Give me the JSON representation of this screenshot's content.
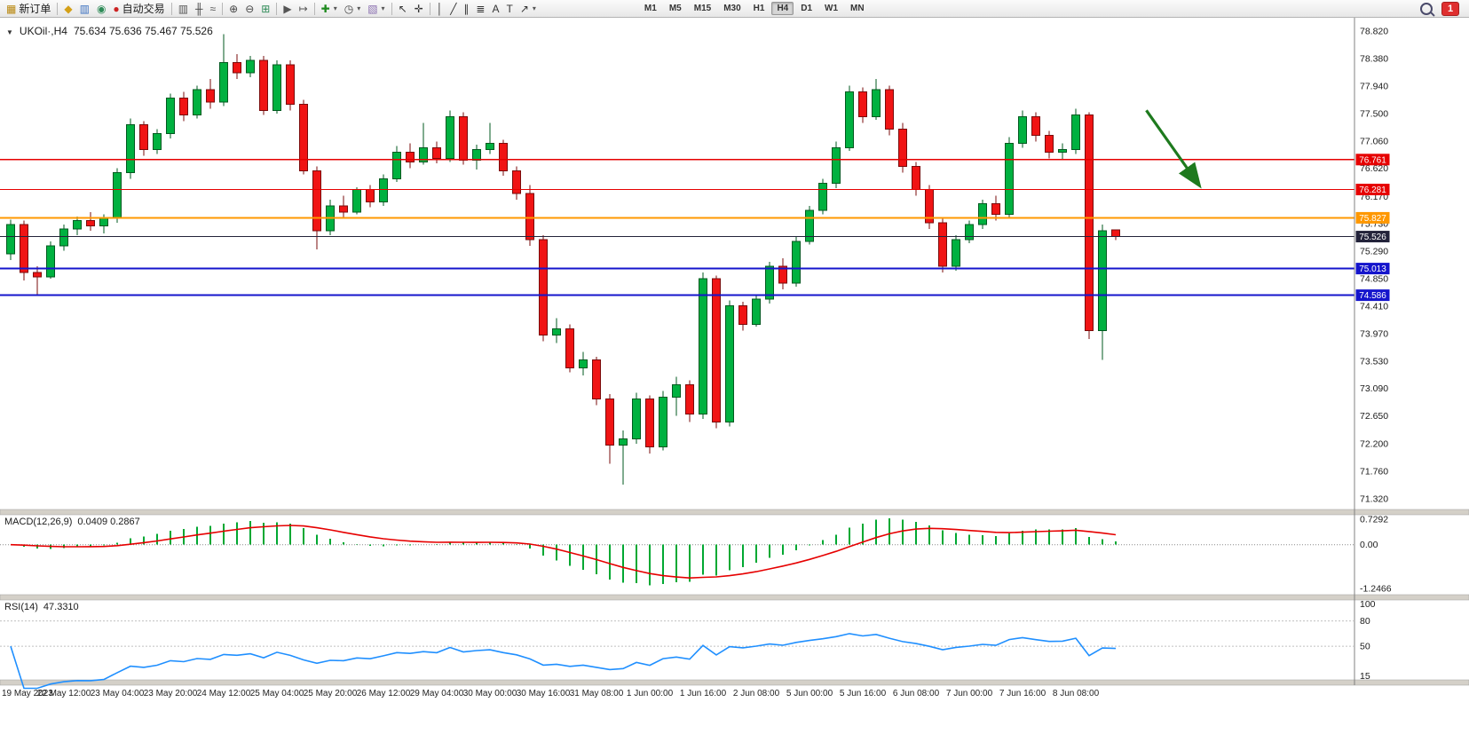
{
  "toolbar": {
    "notification_count": "1",
    "timeframes": [
      "M1",
      "M5",
      "M15",
      "M30",
      "H1",
      "H4",
      "D1",
      "W1",
      "MN"
    ],
    "active_timeframe": "H4",
    "items": [
      {
        "name": "new-order-button",
        "icon": "new-order",
        "label": "新订单"
      },
      {
        "sep": true
      },
      {
        "name": "market-watch-button",
        "icon": "market-watch"
      },
      {
        "name": "data-window-button",
        "icon": "data-window"
      },
      {
        "name": "navigator-button",
        "icon": "navigator"
      },
      {
        "name": "autotrading-button",
        "icon": "autotrading",
        "label": "自动交易"
      },
      {
        "sep": true
      },
      {
        "name": "bar-chart-button",
        "icon": "bar-chart"
      },
      {
        "name": "candlestick-chart-button",
        "icon": "candlestick"
      },
      {
        "name": "line-chart-button",
        "icon": "line-chart"
      },
      {
        "sep": true
      },
      {
        "name": "zoom-in-button",
        "icon": "zoom-in"
      },
      {
        "name": "zoom-out-button",
        "icon": "zoom-out"
      },
      {
        "name": "tile-windows-button",
        "icon": "tile-windows"
      },
      {
        "sep": true
      },
      {
        "name": "auto-scroll-button",
        "icon": "auto-scroll"
      },
      {
        "name": "chart-shift-button",
        "icon": "chart-shift"
      },
      {
        "sep": true
      },
      {
        "name": "indicators-button",
        "icon": "indicators",
        "dropdown": true
      },
      {
        "name": "periods-button",
        "icon": "clock",
        "dropdown": true
      },
      {
        "name": "templates-button",
        "icon": "template",
        "dropdown": true
      },
      {
        "sep": true
      },
      {
        "name": "cursor-button",
        "icon": "cursor"
      },
      {
        "name": "crosshair-button",
        "icon": "crosshair"
      },
      {
        "sep": true
      },
      {
        "name": "vertical-line-button",
        "icon": "vline"
      },
      {
        "name": "trendline-button",
        "icon": "trendline"
      },
      {
        "name": "equidistant-channel-button",
        "icon": "channel"
      },
      {
        "name": "fibonacci-button",
        "icon": "fibonacci"
      },
      {
        "name": "text-button",
        "icon": "text"
      },
      {
        "name": "text-label-button",
        "icon": "text-label"
      },
      {
        "name": "arrows-button",
        "icon": "arrows",
        "dropdown": true
      }
    ]
  },
  "chart_data": {
    "type": "candlestick",
    "symbol": "UKOil",
    "timeframe": "H4",
    "title_symbol": "UKOil·,H4",
    "title_ohlc": "75.634 75.636 75.467 75.526",
    "price_axis_labels": [
      "78.820",
      "78.380",
      "77.940",
      "77.500",
      "77.060",
      "76.620",
      "76.170",
      "75.730",
      "75.290",
      "74.850",
      "74.410",
      "73.970",
      "73.530",
      "73.090",
      "72.650",
      "72.200",
      "71.760",
      "71.320"
    ],
    "time_labels": [
      "19 May 2023",
      "22 May 12:00",
      "23 May 04:00",
      "23 May 20:00",
      "24 May 12:00",
      "25 May 04:00",
      "25 May 20:00",
      "26 May 12:00",
      "29 May 04:00",
      "30 May 00:00",
      "30 May 16:00",
      "31 May 08:00",
      "1 Jun 00:00",
      "1 Jun 16:00",
      "2 Jun 08:00",
      "5 Jun 00:00",
      "5 Jun 16:00",
      "6 Jun 08:00",
      "7 Jun 00:00",
      "7 Jun 16:00",
      "8 Jun 08:00"
    ],
    "label_every": 4,
    "candles": [
      [
        75.25,
        75.8,
        75.15,
        75.72
      ],
      [
        75.72,
        75.78,
        74.82,
        74.95
      ],
      [
        74.95,
        75.05,
        74.58,
        74.88
      ],
      [
        74.88,
        75.45,
        74.85,
        75.38
      ],
      [
        75.38,
        75.72,
        75.3,
        75.65
      ],
      [
        75.65,
        75.85,
        75.55,
        75.78
      ],
      [
        75.78,
        75.92,
        75.62,
        75.7
      ],
      [
        75.7,
        75.88,
        75.58,
        75.82
      ],
      [
        75.82,
        76.62,
        75.75,
        76.55
      ],
      [
        76.55,
        77.42,
        76.45,
        77.32
      ],
      [
        77.32,
        77.38,
        76.82,
        76.92
      ],
      [
        76.92,
        77.25,
        76.85,
        77.18
      ],
      [
        77.18,
        77.82,
        77.1,
        77.75
      ],
      [
        77.75,
        77.85,
        77.38,
        77.48
      ],
      [
        77.48,
        77.95,
        77.42,
        77.88
      ],
      [
        77.88,
        78.05,
        77.58,
        77.68
      ],
      [
        77.68,
        78.77,
        77.62,
        78.32
      ],
      [
        78.32,
        78.45,
        78.05,
        78.15
      ],
      [
        78.15,
        78.42,
        78.08,
        78.35
      ],
      [
        78.35,
        78.42,
        77.48,
        77.55
      ],
      [
        77.55,
        78.35,
        77.5,
        78.28
      ],
      [
        78.28,
        78.35,
        77.55,
        77.65
      ],
      [
        77.65,
        77.72,
        76.52,
        76.58
      ],
      [
        76.58,
        76.65,
        75.32,
        75.62
      ],
      [
        75.62,
        76.12,
        75.55,
        76.02
      ],
      [
        76.02,
        76.18,
        75.82,
        75.92
      ],
      [
        75.92,
        76.32,
        75.88,
        76.28
      ],
      [
        76.28,
        76.35,
        76.0,
        76.08
      ],
      [
        76.08,
        76.52,
        76.02,
        76.45
      ],
      [
        76.45,
        76.98,
        76.4,
        76.88
      ],
      [
        76.88,
        77.02,
        76.62,
        76.72
      ],
      [
        76.72,
        77.35,
        76.68,
        76.95
      ],
      [
        76.95,
        77.05,
        76.7,
        76.78
      ],
      [
        76.78,
        77.55,
        76.72,
        77.45
      ],
      [
        77.45,
        77.52,
        76.68,
        76.75
      ],
      [
        76.75,
        77.0,
        76.6,
        76.92
      ],
      [
        76.92,
        77.35,
        76.85,
        77.02
      ],
      [
        77.02,
        77.08,
        76.5,
        76.58
      ],
      [
        76.58,
        76.65,
        76.12,
        76.22
      ],
      [
        76.22,
        76.35,
        75.38,
        75.48
      ],
      [
        75.48,
        75.55,
        73.85,
        73.95
      ],
      [
        73.95,
        74.22,
        73.82,
        74.05
      ],
      [
        74.05,
        74.12,
        73.35,
        73.42
      ],
      [
        73.42,
        73.68,
        73.3,
        73.55
      ],
      [
        73.55,
        73.6,
        72.82,
        72.92
      ],
      [
        72.92,
        73.0,
        71.88,
        72.18
      ],
      [
        72.18,
        72.42,
        71.55,
        72.28
      ],
      [
        72.28,
        73.02,
        72.2,
        72.92
      ],
      [
        72.92,
        72.98,
        72.05,
        72.15
      ],
      [
        72.15,
        73.05,
        72.1,
        72.95
      ],
      [
        72.95,
        73.28,
        72.65,
        73.15
      ],
      [
        73.15,
        73.22,
        72.55,
        72.68
      ],
      [
        72.68,
        74.95,
        72.6,
        74.85
      ],
      [
        74.85,
        74.9,
        72.45,
        72.55
      ],
      [
        72.55,
        74.5,
        72.48,
        74.42
      ],
      [
        74.42,
        74.48,
        74.02,
        74.12
      ],
      [
        74.12,
        74.58,
        74.08,
        74.52
      ],
      [
        74.52,
        75.12,
        74.45,
        75.05
      ],
      [
        75.05,
        75.18,
        74.68,
        74.78
      ],
      [
        74.78,
        75.52,
        74.72,
        75.45
      ],
      [
        75.45,
        76.02,
        75.4,
        75.95
      ],
      [
        75.95,
        76.45,
        75.88,
        76.38
      ],
      [
        76.38,
        77.05,
        76.3,
        76.95
      ],
      [
        76.95,
        77.95,
        76.9,
        77.85
      ],
      [
        77.85,
        77.92,
        77.35,
        77.45
      ],
      [
        77.45,
        78.05,
        77.4,
        77.88
      ],
      [
        77.88,
        77.95,
        77.15,
        77.25
      ],
      [
        77.25,
        77.35,
        76.55,
        76.65
      ],
      [
        76.65,
        76.72,
        76.18,
        76.28
      ],
      [
        76.28,
        76.35,
        75.65,
        75.75
      ],
      [
        75.75,
        75.82,
        74.95,
        75.05
      ],
      [
        75.05,
        75.55,
        74.98,
        75.48
      ],
      [
        75.48,
        75.78,
        75.42,
        75.72
      ],
      [
        75.72,
        76.12,
        75.65,
        76.05
      ],
      [
        76.05,
        76.18,
        75.78,
        75.88
      ],
      [
        75.88,
        77.12,
        75.82,
        77.02
      ],
      [
        77.02,
        77.55,
        76.95,
        77.45
      ],
      [
        77.45,
        77.52,
        77.05,
        77.15
      ],
      [
        77.15,
        77.22,
        76.78,
        76.88
      ],
      [
        76.88,
        77.02,
        76.75,
        76.92
      ],
      [
        76.92,
        77.58,
        76.85,
        77.48
      ],
      [
        77.48,
        77.52,
        73.88,
        74.02
      ],
      [
        74.02,
        75.72,
        73.55,
        75.62
      ],
      [
        75.634,
        75.636,
        75.467,
        75.526
      ]
    ],
    "levels": [
      {
        "price": 76.761,
        "label": "76.761",
        "color": "#e60000",
        "width": 1.3
      },
      {
        "price": 76.281,
        "label": "76.281",
        "color": "#e60000",
        "width": 1.3
      },
      {
        "price": 75.827,
        "label": "75.827",
        "color": "#ff9800",
        "width": 2
      },
      {
        "price": 75.526,
        "label": "75.526",
        "color": "#23233a",
        "width": 1
      },
      {
        "price": 75.013,
        "label": "75.013",
        "color": "#1515cc",
        "width": 2
      },
      {
        "price": 74.586,
        "label": "74.586",
        "color": "#1515cc",
        "width": 2
      }
    ],
    "annotation_arrow": {
      "from_bar": 85.3,
      "from_price": 77.55,
      "to_bar": 89.2,
      "to_price": 76.37,
      "color": "#1e7a1e"
    },
    "colors": {
      "up": "#00b140",
      "up_border": "#00591f",
      "down": "#f01414",
      "down_border": "#7a0b0b"
    },
    "indicators": {
      "macd": {
        "label": "MACD(12,26,9)",
        "values": "0.0409 0.2867",
        "params": [
          12,
          26,
          9
        ],
        "scale_labels": [
          "0.7292",
          "0.00",
          "-1.2466"
        ],
        "scale_max": 0.85,
        "scale_min": -1.42,
        "histogram_color": "#00a832",
        "signal_color": "#e60000"
      },
      "rsi": {
        "label": "RSI(14)",
        "value": "47.3310",
        "period": 14,
        "scale_labels": [
          "100",
          "80",
          "50",
          "15"
        ],
        "scale_max": 105,
        "scale_min": 10,
        "levels": [
          80,
          50
        ],
        "line_color": "#1f8fff"
      }
    }
  }
}
